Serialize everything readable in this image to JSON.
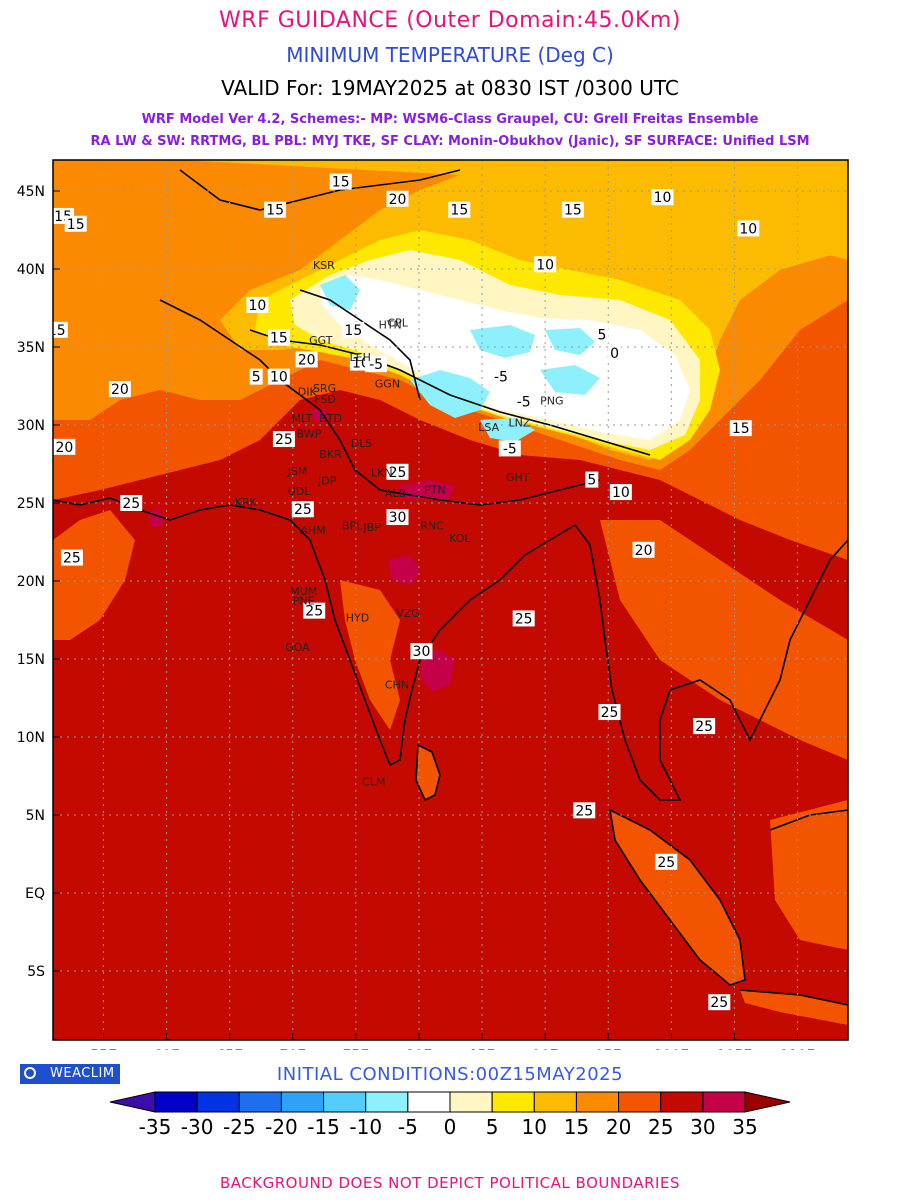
{
  "header": {
    "title": "WRF GUIDANCE (Outer Domain:45.0Km)",
    "subtitle": "MINIMUM TEMPERATURE (Deg C)",
    "valid": "VALID For: 19MAY2025 at 0830 IST /0300 UTC",
    "model_line1": "WRF Model Ver 4.2, Schemes:- MP: WSM6-Class Graupel, CU: Grell Freitas Ensemble",
    "model_line2": "RA LW & SW: RRTMG, BL PBL: MYJ TKE, SF CLAY: Monin-Obukhov (Janic), SF SURFACE: Unified LSM"
  },
  "map": {
    "lat_labels": [
      "45N",
      "40N",
      "35N",
      "30N",
      "25N",
      "20N",
      "15N",
      "10N",
      "5N",
      "EQ",
      "5S"
    ],
    "lon_labels": [
      "55E",
      "60E",
      "65E",
      "70E",
      "75E",
      "80E",
      "85E",
      "90E",
      "95E",
      "100E",
      "105E",
      "110E"
    ],
    "contour_labels": [
      {
        "text": "15",
        "lat": 45.6,
        "lon": 73.8
      },
      {
        "text": "20",
        "lat": 44.5,
        "lon": 78.3
      },
      {
        "text": "15",
        "lat": 43.8,
        "lon": 68.6
      },
      {
        "text": "15",
        "lat": 43.8,
        "lon": 83.2
      },
      {
        "text": "15",
        "lat": 43.8,
        "lon": 92.2
      },
      {
        "text": "10",
        "lat": 44.6,
        "lon": 99.3
      },
      {
        "text": "10",
        "lat": 42.6,
        "lon": 106.1
      },
      {
        "text": "15",
        "lat": 43.4,
        "lon": 51.8
      },
      {
        "text": "15",
        "lat": 42.9,
        "lon": 52.8
      },
      {
        "text": "10",
        "lat": 40.3,
        "lon": 90.0
      },
      {
        "text": "10",
        "lat": 37.7,
        "lon": 67.2
      },
      {
        "text": "15",
        "lat": 36.1,
        "lon": 51.3
      },
      {
        "text": "15",
        "lat": 35.6,
        "lon": 68.9
      },
      {
        "text": "15",
        "lat": 36.1,
        "lon": 74.8
      },
      {
        "text": "20",
        "lat": 34.2,
        "lon": 71.1
      },
      {
        "text": "5",
        "lat": 33.1,
        "lon": 67.1
      },
      {
        "text": "10",
        "lat": 33.1,
        "lon": 68.9
      },
      {
        "text": "10",
        "lat": 34.0,
        "lon": 75.4
      },
      {
        "text": "-5",
        "lat": 33.9,
        "lon": 76.6
      },
      {
        "text": "-5",
        "lat": 33.1,
        "lon": 86.5
      },
      {
        "text": "-5",
        "lat": 31.5,
        "lon": 88.3
      },
      {
        "text": "-5",
        "lat": 28.5,
        "lon": 87.2
      },
      {
        "text": "5",
        "lat": 35.8,
        "lon": 94.5
      },
      {
        "text": "0",
        "lat": 34.6,
        "lon": 95.5
      },
      {
        "text": "20",
        "lat": 32.3,
        "lon": 56.3
      },
      {
        "text": "20",
        "lat": 28.6,
        "lon": 51.9
      },
      {
        "text": "25",
        "lat": 29.1,
        "lon": 69.3
      },
      {
        "text": "25",
        "lat": 27.0,
        "lon": 78.3
      },
      {
        "text": "25",
        "lat": 25.0,
        "lon": 57.2
      },
      {
        "text": "25",
        "lat": 24.6,
        "lon": 70.8
      },
      {
        "text": "30",
        "lat": 24.1,
        "lon": 78.3
      },
      {
        "text": "25",
        "lat": 21.5,
        "lon": 52.5
      },
      {
        "text": "25",
        "lat": 18.1,
        "lon": 71.7
      },
      {
        "text": "30",
        "lat": 15.5,
        "lon": 80.2
      },
      {
        "text": "25",
        "lat": 17.6,
        "lon": 88.3
      },
      {
        "text": "15",
        "lat": 29.8,
        "lon": 105.5
      },
      {
        "text": "10",
        "lat": 25.7,
        "lon": 96.0
      },
      {
        "text": "20",
        "lat": 22.0,
        "lon": 97.8
      },
      {
        "text": "5",
        "lat": 26.5,
        "lon": 93.7
      },
      {
        "text": "25",
        "lat": 11.6,
        "lon": 95.1
      },
      {
        "text": "25",
        "lat": 10.7,
        "lon": 102.6
      },
      {
        "text": "25",
        "lat": 5.3,
        "lon": 93.1
      },
      {
        "text": "25",
        "lat": 2.0,
        "lon": 99.6
      },
      {
        "text": "25",
        "lat": -7.0,
        "lon": 103.8
      }
    ],
    "station_labels": [
      {
        "text": "KSR",
        "lat": 40.0,
        "lon": 71.6
      },
      {
        "text": "HTN",
        "lat": 36.2,
        "lon": 76.8
      },
      {
        "text": "GGT",
        "lat": 35.2,
        "lon": 71.3
      },
      {
        "text": "CPL",
        "lat": 36.3,
        "lon": 77.5
      },
      {
        "text": "LEH",
        "lat": 34.1,
        "lon": 74.5
      },
      {
        "text": "GGN",
        "lat": 32.4,
        "lon": 76.5
      },
      {
        "text": "PNG",
        "lat": 31.3,
        "lon": 89.6
      },
      {
        "text": "LSA",
        "lat": 29.6,
        "lon": 84.7
      },
      {
        "text": "LNZ",
        "lat": 29.9,
        "lon": 87.1
      },
      {
        "text": "DIK",
        "lat": 31.9,
        "lon": 70.4
      },
      {
        "text": "SRG",
        "lat": 32.1,
        "lon": 71.6
      },
      {
        "text": "FSD",
        "lat": 31.4,
        "lon": 71.7
      },
      {
        "text": "MLT",
        "lat": 30.2,
        "lon": 69.9
      },
      {
        "text": "BWP",
        "lat": 29.2,
        "lon": 70.3
      },
      {
        "text": "BTD",
        "lat": 30.2,
        "lon": 72.1
      },
      {
        "text": "BKR",
        "lat": 27.9,
        "lon": 72.1
      },
      {
        "text": "DLS",
        "lat": 28.6,
        "lon": 74.6
      },
      {
        "text": "JSM",
        "lat": 26.8,
        "lon": 69.6
      },
      {
        "text": "JDP",
        "lat": 26.2,
        "lon": 72.0
      },
      {
        "text": "UDL",
        "lat": 25.5,
        "lon": 69.6
      },
      {
        "text": "LKN",
        "lat": 26.7,
        "lon": 76.2
      },
      {
        "text": "KRK",
        "lat": 24.8,
        "lon": 65.4
      },
      {
        "text": "AHM",
        "lat": 23.0,
        "lon": 70.6
      },
      {
        "text": "ALB",
        "lat": 25.4,
        "lon": 77.3
      },
      {
        "text": "PTN",
        "lat": 25.6,
        "lon": 80.4
      },
      {
        "text": "BPL",
        "lat": 23.3,
        "lon": 73.9
      },
      {
        "text": "JBP",
        "lat": 23.2,
        "lon": 75.6
      },
      {
        "text": "RNC",
        "lat": 23.3,
        "lon": 80.1
      },
      {
        "text": "KOL",
        "lat": 22.5,
        "lon": 82.4
      },
      {
        "text": "GHT",
        "lat": 26.4,
        "lon": 86.9
      },
      {
        "text": "MUM",
        "lat": 19.1,
        "lon": 69.8
      },
      {
        "text": "PNE",
        "lat": 18.5,
        "lon": 70.0
      },
      {
        "text": "HYD",
        "lat": 17.4,
        "lon": 74.2
      },
      {
        "text": "VZG",
        "lat": 17.7,
        "lon": 78.2
      },
      {
        "text": "GOA",
        "lat": 15.5,
        "lon": 69.4
      },
      {
        "text": "CHN",
        "lat": 13.1,
        "lon": 77.3
      },
      {
        "text": "CLM",
        "lat": 6.9,
        "lon": 75.5
      }
    ]
  },
  "colorbar": {
    "ticks": [
      "-35",
      "-30",
      "-25",
      "-20",
      "-15",
      "-10",
      "-5",
      "0",
      "5",
      "10",
      "15",
      "20",
      "25",
      "30",
      "35"
    ],
    "colors": [
      "#3b0ea8",
      "#0000c8",
      "#0032e6",
      "#1e6ef0",
      "#2ea2f8",
      "#55cdfa",
      "#8ef0fd",
      "#ffffff",
      "#fff6c4",
      "#ffe800",
      "#fdbb00",
      "#fb8a00",
      "#f35400",
      "#c40a00",
      "#c50049",
      "#990000"
    ]
  },
  "init": "INITIAL CONDITIONS:00Z15MAY2025",
  "badge": "WEACLIM",
  "footer": "BACKGROUND DOES NOT DEPICT POLITICAL BOUNDARIES"
}
